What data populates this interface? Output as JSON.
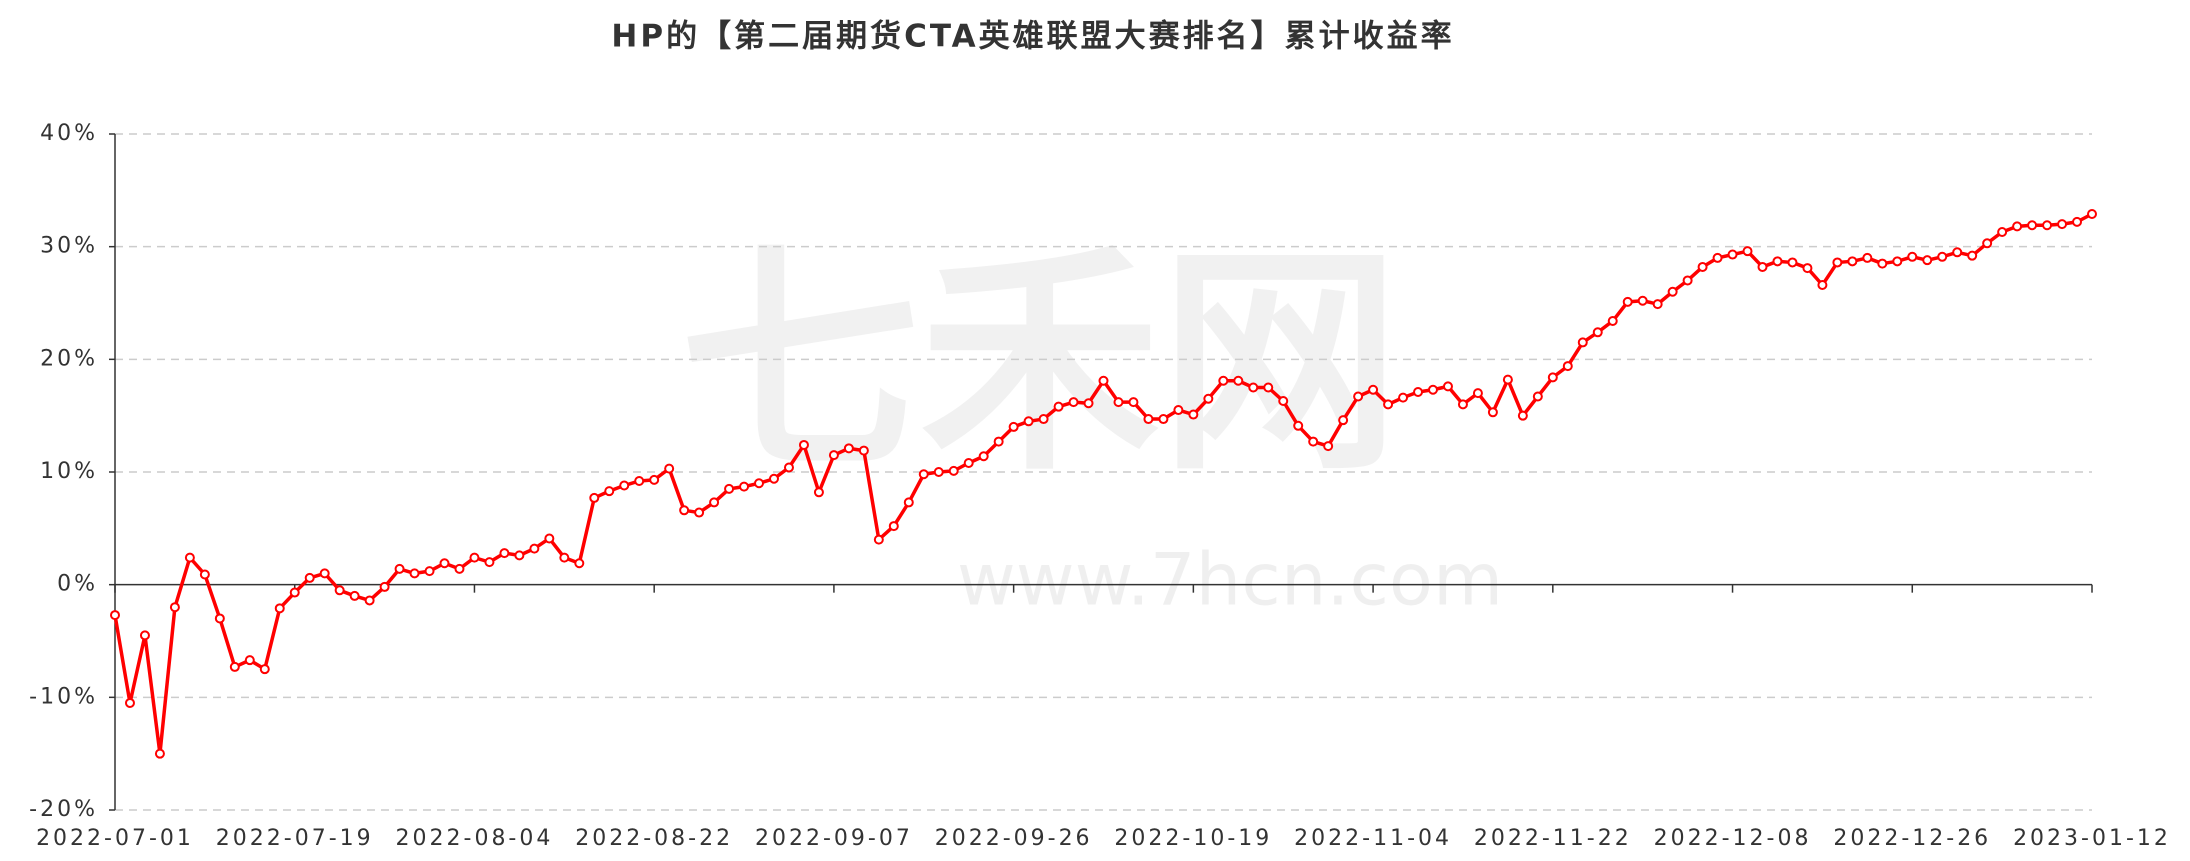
{
  "chart_data": {
    "type": "line",
    "title": "HP的【第二届期货CTA英雄联盟大赛排名】累计收益率",
    "watermark": [
      "七禾网",
      "www.7hcn.com"
    ],
    "categories": [
      "2022-07-01",
      null,
      null,
      null,
      null,
      null,
      null,
      null,
      null,
      null,
      null,
      null,
      "2022-07-19",
      null,
      null,
      null,
      null,
      null,
      null,
      null,
      null,
      null,
      null,
      null,
      "2022-08-04",
      null,
      null,
      null,
      null,
      null,
      null,
      null,
      null,
      null,
      null,
      null,
      "2022-08-22",
      null,
      null,
      null,
      null,
      null,
      null,
      null,
      null,
      null,
      null,
      null,
      "2022-09-07",
      null,
      null,
      null,
      null,
      null,
      null,
      null,
      null,
      null,
      null,
      null,
      "2022-09-26",
      null,
      null,
      null,
      null,
      null,
      null,
      null,
      null,
      null,
      null,
      null,
      "2022-10-19",
      null,
      null,
      null,
      null,
      null,
      null,
      null,
      null,
      null,
      null,
      null,
      "2022-11-04",
      null,
      null,
      null,
      null,
      null,
      null,
      null,
      null,
      null,
      null,
      null,
      "2022-11-22",
      null,
      null,
      null,
      null,
      null,
      null,
      null,
      null,
      null,
      null,
      null,
      "2022-12-08",
      null,
      null,
      null,
      null,
      null,
      null,
      null,
      null,
      null,
      null,
      null,
      "2022-12-26",
      null,
      null,
      null,
      null,
      null,
      null,
      null,
      null,
      null,
      null,
      null,
      "2023-01-12"
    ],
    "values": [
      -2.7,
      -10.5,
      -4.5,
      -15,
      -2,
      2.4,
      0.9,
      -3,
      -7.3,
      -6.7,
      -7.5,
      -2.1,
      -0.7,
      0.6,
      1,
      -0.5,
      -1,
      -1.4,
      -0.2,
      1.4,
      1,
      1.2,
      1.9,
      1.4,
      2.4,
      2,
      2.8,
      2.6,
      3.2,
      4.1,
      2.4,
      1.9,
      7.7,
      8.3,
      8.8,
      9.2,
      9.3,
      10.3,
      6.6,
      6.4,
      7.3,
      8.5,
      8.7,
      9,
      9.4,
      10.4,
      12.4,
      8.2,
      11.5,
      12.1,
      11.9,
      4,
      5.2,
      7.3,
      9.8,
      10,
      10.1,
      10.8,
      11.4,
      12.7,
      14,
      14.5,
      14.7,
      15.8,
      16.2,
      16.1,
      18.1,
      16.2,
      16.2,
      14.7,
      14.7,
      15.5,
      15.1,
      16.5,
      18.1,
      18.1,
      17.5,
      17.5,
      16.3,
      14.1,
      12.7,
      12.3,
      14.6,
      16.7,
      17.3,
      16,
      16.6,
      17.1,
      17.3,
      17.6,
      16,
      17,
      15.3,
      18.2,
      15,
      16.7,
      18.4,
      19.4,
      21.5,
      22.4,
      23.4,
      25.1,
      25.2,
      24.9,
      26,
      27,
      28.2,
      29,
      29.3,
      29.6,
      28.2,
      28.7,
      28.6,
      28.1,
      26.6,
      28.6,
      28.7,
      29,
      28.5,
      28.7,
      29.1,
      28.8,
      29.1,
      29.5,
      29.2,
      30.3,
      31.3,
      31.8,
      31.9,
      31.9,
      32,
      32.2,
      32.9
    ],
    "color": "#ff0000",
    "ylim": [
      -20,
      40
    ],
    "yticks": [
      {
        "value": -20,
        "label": "-20%"
      },
      {
        "value": -10,
        "label": "-10%"
      },
      {
        "value": 0,
        "label": "0%"
      },
      {
        "value": 10,
        "label": "10%"
      },
      {
        "value": 20,
        "label": "20%"
      },
      {
        "value": 30,
        "label": "30%"
      },
      {
        "value": 40,
        "label": "40%"
      }
    ],
    "grid": true
  }
}
